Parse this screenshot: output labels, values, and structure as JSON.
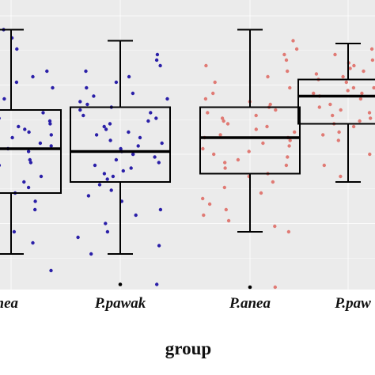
{
  "chart_data": {
    "type": "box",
    "xlabel": "group",
    "ylabel": "",
    "grid": true,
    "categories": [
      "P.anea",
      "P.pawak",
      "P.anea",
      "P.pawak"
    ],
    "visible_tick_labels": [
      "anea",
      "P.pawak",
      "P.anea",
      "P.paw"
    ],
    "colors": {
      "panel": "#ebebeb",
      "grid": "#ffffff",
      "box_edge": "#000000",
      "outlier": "#000000",
      "points": [
        "#2a1fa8",
        "#2a1fa8",
        "#e07a74",
        "#e07a74"
      ]
    },
    "ylim": [
      0,
      100
    ],
    "boxes": [
      {
        "category": "P.anea",
        "whisker_low": 14,
        "q1": 36,
        "median": 52,
        "q3": 66,
        "whisker_high": 95,
        "outliers": []
      },
      {
        "category": "P.pawak",
        "whisker_low": 14,
        "q1": 40,
        "median": 51,
        "q3": 67,
        "whisker_high": 91,
        "outliers": [
          3
        ]
      },
      {
        "category": "P.anea",
        "whisker_low": 22,
        "q1": 43,
        "median": 56,
        "q3": 67,
        "whisker_high": 95,
        "outliers": [
          2
        ]
      },
      {
        "category": "P.pawak",
        "whisker_low": 40,
        "q1": 61,
        "median": 71,
        "q3": 77,
        "whisker_high": 90,
        "outliers": []
      }
    ],
    "points": [
      [
        6,
        8,
        10,
        14,
        18,
        22,
        26,
        30,
        33,
        36,
        38,
        40,
        42,
        44,
        46,
        47,
        48,
        50,
        51,
        52,
        53,
        54,
        55,
        56,
        57,
        58,
        59,
        60,
        61,
        62,
        63,
        64,
        65,
        66,
        67,
        68,
        70,
        72,
        74,
        76,
        78,
        80,
        82,
        85,
        88,
        92,
        95
      ],
      [
        14,
        17,
        20,
        22,
        25,
        28,
        30,
        33,
        35,
        37,
        39,
        41,
        42,
        43,
        44,
        45,
        46,
        47,
        48,
        49,
        50,
        50,
        51,
        52,
        53,
        54,
        55,
        56,
        57,
        58,
        59,
        60,
        61,
        62,
        63,
        64,
        65,
        66,
        67,
        68,
        69,
        70,
        71,
        72,
        74,
        76,
        78,
        80,
        82,
        84,
        86,
        3
      ],
      [
        22,
        24,
        26,
        28,
        30,
        32,
        34,
        36,
        38,
        40,
        42,
        43,
        45,
        46,
        47,
        48,
        49,
        50,
        51,
        52,
        53,
        54,
        55,
        56,
        56,
        57,
        58,
        59,
        60,
        61,
        62,
        63,
        64,
        65,
        66,
        67,
        68,
        69,
        70,
        72,
        74,
        76,
        78,
        80,
        82,
        84,
        86,
        88,
        91,
        2
      ],
      [
        42,
        46,
        50,
        53,
        55,
        57,
        58,
        59,
        60,
        61,
        62,
        63,
        64,
        65,
        66,
        67,
        68,
        68,
        69,
        70,
        70,
        71,
        71,
        72,
        72,
        73,
        74,
        74,
        75,
        76,
        77,
        78,
        79,
        80,
        81,
        82,
        83,
        84,
        86,
        88
      ]
    ]
  }
}
